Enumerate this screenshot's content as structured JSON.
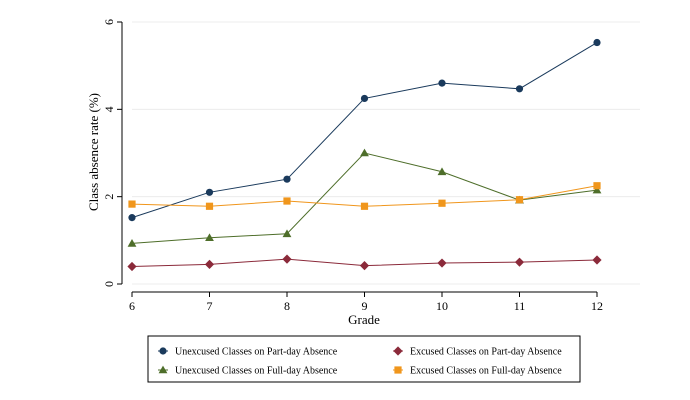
{
  "chart_data": {
    "type": "line",
    "title": "",
    "xlabel": "Grade",
    "ylabel": "Class absence rate (%)",
    "x": [
      6,
      7,
      8,
      9,
      10,
      11,
      12
    ],
    "x_ticks": [
      "6",
      "7",
      "8",
      "9",
      "10",
      "11",
      "12"
    ],
    "y_ticks": [
      "0",
      "2",
      "4",
      "6"
    ],
    "xlim": [
      6,
      12
    ],
    "ylim": [
      0,
      6
    ],
    "grid": "horizontal",
    "legend_position": "bottom",
    "series": [
      {
        "name": "Unexcused Classes on Part-day Absence",
        "color": "#1a3a5c",
        "marker": "circle",
        "values": [
          1.52,
          2.1,
          2.4,
          4.25,
          4.6,
          4.47,
          5.53
        ]
      },
      {
        "name": "Excused Classes on Part-day Absence",
        "color": "#8b2a3a",
        "marker": "diamond",
        "values": [
          0.4,
          0.45,
          0.57,
          0.42,
          0.48,
          0.5,
          0.55
        ]
      },
      {
        "name": "Unexcused Classes on Full-day Absence",
        "color": "#4e6e2a",
        "marker": "triangle",
        "values": [
          0.93,
          1.06,
          1.15,
          3.0,
          2.57,
          1.92,
          2.15
        ]
      },
      {
        "name": "Excused Classes on Full-day Absence",
        "color": "#f0961c",
        "marker": "square",
        "values": [
          1.83,
          1.78,
          1.9,
          1.78,
          1.85,
          1.93,
          2.25
        ]
      }
    ]
  }
}
